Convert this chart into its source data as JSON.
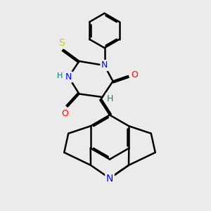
{
  "background_color": "#ebebeb",
  "line_color": "#000000",
  "bond_width": 1.8,
  "atom_colors": {
    "N": "#0000ff",
    "O": "#ff0000",
    "S": "#cccc00",
    "H_label": "#008080",
    "C": "#000000"
  },
  "font_size": 9,
  "xlim": [
    0,
    10
  ],
  "ylim": [
    0,
    10
  ]
}
